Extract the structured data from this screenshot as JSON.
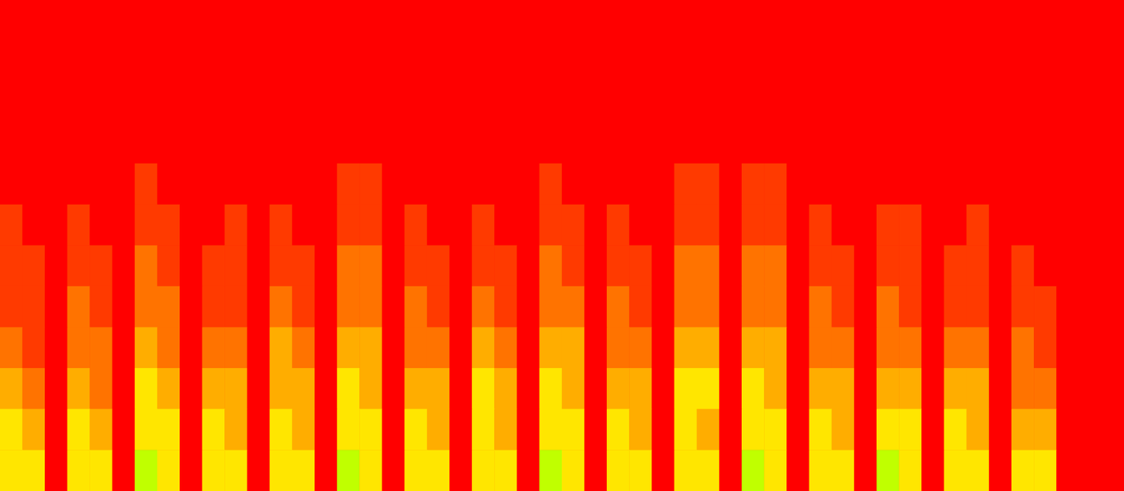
{
  "chart_data": {
    "type": "heatmap",
    "tick_labels": false,
    "grid": false,
    "zlim": [
      0,
      10
    ],
    "colors": [
      "#ff0000",
      "#ff4000",
      "#ff8000",
      "#ffc000",
      "#ffff00",
      "#80ff00",
      "#00ff80",
      "#00ffff",
      "#0080ff",
      "#0000ff"
    ],
    "cells": [
      [
        0,
        0,
        0,
        0,
        0,
        0,
        0,
        0,
        0,
        0,
        0,
        0,
        0,
        0,
        0,
        0,
        0,
        0,
        0,
        0,
        0,
        0,
        0,
        0,
        0,
        0,
        0,
        0,
        0,
        0,
        0,
        0,
        0,
        0,
        0,
        0,
        0,
        0,
        0,
        0,
        0,
        0,
        0,
        0,
        0,
        0,
        0,
        0,
        0,
        0
      ],
      [
        0,
        0,
        0,
        0,
        0,
        0,
        0,
        0,
        0,
        0,
        0,
        0,
        0,
        0,
        0,
        0,
        0,
        0,
        0,
        0,
        0,
        0,
        0,
        0,
        0,
        0,
        0,
        0,
        0,
        0,
        0,
        0,
        0,
        0,
        0,
        0,
        0,
        0,
        0,
        0,
        0,
        0,
        0,
        0,
        0,
        0,
        0,
        0,
        0,
        0
      ],
      [
        0,
        0,
        0,
        0,
        0,
        0,
        0,
        0,
        0,
        0,
        0,
        0,
        0,
        0,
        0,
        0,
        0,
        0,
        0,
        0,
        0,
        0,
        0,
        0,
        0,
        0,
        0,
        0,
        0,
        0,
        0,
        0,
        0,
        0,
        0,
        0,
        0,
        0,
        0,
        0,
        0,
        0,
        0,
        0,
        0,
        0,
        0,
        0,
        0,
        0
      ],
      [
        0,
        0,
        0,
        0,
        0,
        0,
        0,
        0,
        0,
        0,
        0,
        0,
        0,
        0,
        0,
        0,
        0,
        0,
        0,
        0,
        0,
        0,
        0,
        0,
        0,
        0,
        0,
        0,
        0,
        0,
        0,
        0,
        0,
        0,
        0,
        0,
        0,
        0,
        0,
        0,
        0,
        0,
        0,
        0,
        0,
        0,
        0,
        0,
        0,
        0
      ],
      [
        0,
        0,
        0,
        0,
        0,
        0,
        1,
        0,
        0,
        0,
        0,
        0,
        0,
        0,
        0,
        1,
        1,
        0,
        0,
        0,
        0,
        0,
        0,
        0,
        1,
        0,
        0,
        0,
        0,
        0,
        1,
        1,
        0,
        1,
        1,
        0,
        0,
        0,
        0,
        0,
        0,
        0,
        0,
        0,
        0,
        0,
        0,
        0,
        0,
        0
      ],
      [
        1,
        0,
        0,
        1,
        0,
        0,
        1,
        1,
        0,
        0,
        1,
        0,
        1,
        0,
        0,
        1,
        1,
        0,
        1,
        0,
        0,
        1,
        0,
        0,
        1,
        1,
        0,
        1,
        0,
        0,
        1,
        1,
        0,
        1,
        1,
        0,
        1,
        0,
        0,
        1,
        1,
        0,
        0,
        1,
        0,
        0,
        0,
        0,
        0,
        0
      ],
      [
        1,
        1,
        0,
        1,
        1,
        0,
        2,
        1,
        0,
        1,
        1,
        0,
        1,
        1,
        0,
        2,
        2,
        0,
        1,
        1,
        0,
        1,
        1,
        0,
        2,
        1,
        0,
        1,
        1,
        0,
        2,
        2,
        0,
        2,
        2,
        0,
        1,
        1,
        0,
        1,
        1,
        0,
        1,
        1,
        0,
        1,
        0,
        0,
        0,
        0
      ],
      [
        1,
        1,
        0,
        2,
        1,
        0,
        2,
        2,
        0,
        1,
        1,
        0,
        2,
        1,
        0,
        2,
        2,
        0,
        2,
        1,
        0,
        2,
        1,
        0,
        2,
        2,
        0,
        2,
        1,
        0,
        2,
        2,
        0,
        2,
        2,
        0,
        2,
        1,
        0,
        2,
        1,
        0,
        1,
        1,
        0,
        1,
        1,
        0,
        0,
        0
      ],
      [
        2,
        1,
        0,
        2,
        2,
        0,
        3,
        2,
        0,
        2,
        2,
        0,
        3,
        2,
        0,
        3,
        3,
        0,
        2,
        2,
        0,
        3,
        2,
        0,
        3,
        3,
        0,
        2,
        2,
        0,
        3,
        3,
        0,
        3,
        3,
        0,
        2,
        2,
        0,
        2,
        2,
        0,
        2,
        2,
        0,
        2,
        1,
        0,
        0,
        0
      ],
      [
        3,
        2,
        0,
        3,
        2,
        0,
        4,
        3,
        0,
        3,
        3,
        0,
        3,
        3,
        0,
        4,
        3,
        0,
        3,
        3,
        0,
        4,
        3,
        0,
        4,
        3,
        0,
        3,
        3,
        0,
        4,
        4,
        0,
        4,
        3,
        0,
        3,
        3,
        0,
        3,
        3,
        0,
        3,
        3,
        0,
        2,
        2,
        0,
        0,
        0
      ],
      [
        4,
        3,
        0,
        4,
        3,
        0,
        4,
        4,
        0,
        4,
        3,
        0,
        4,
        3,
        0,
        4,
        4,
        0,
        4,
        3,
        0,
        4,
        3,
        0,
        4,
        4,
        0,
        4,
        3,
        0,
        4,
        3,
        0,
        4,
        4,
        0,
        4,
        3,
        0,
        4,
        4,
        0,
        4,
        3,
        0,
        3,
        3,
        0,
        0,
        0
      ],
      [
        4,
        4,
        0,
        4,
        4,
        0,
        5,
        4,
        0,
        4,
        4,
        0,
        4,
        4,
        0,
        5,
        4,
        0,
        4,
        4,
        0,
        4,
        4,
        0,
        5,
        4,
        0,
        4,
        4,
        0,
        4,
        4,
        0,
        5,
        4,
        0,
        4,
        4,
        0,
        5,
        4,
        0,
        4,
        4,
        0,
        4,
        4,
        0,
        0,
        0
      ]
    ]
  }
}
